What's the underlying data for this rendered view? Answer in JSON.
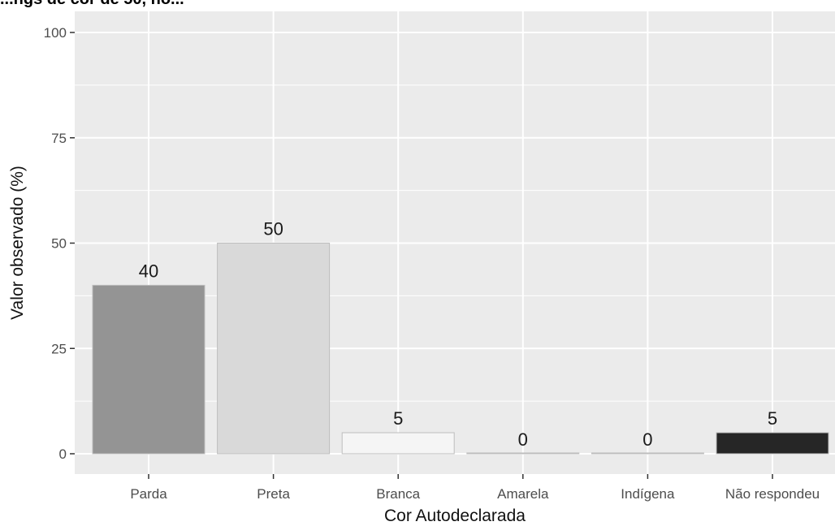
{
  "page": {
    "title_fragment": "...ngs de cor de 50, no..."
  },
  "chart_data": {
    "type": "bar",
    "title": "",
    "xlabel": "Cor Autodeclarada",
    "ylabel": "Valor observado (%)",
    "ylim": [
      0,
      100
    ],
    "yticks": [
      0,
      25,
      50,
      75,
      100
    ],
    "categories": [
      "Parda",
      "Preta",
      "Branca",
      "Amarela",
      "Indígena",
      "Não respondeu"
    ],
    "values": [
      40,
      50,
      5,
      0,
      0,
      5
    ],
    "data_labels": [
      "40",
      "50",
      "5",
      "0",
      "0",
      "5"
    ],
    "bar_colors": [
      "#949494",
      "#d9d9d9",
      "#f5f5f5",
      "#e0e0e0",
      "#e0e0e0",
      "#262626"
    ],
    "grid": true,
    "panel_background": "#ebebeb",
    "gridline_color": "#ffffff",
    "legend": "none"
  }
}
